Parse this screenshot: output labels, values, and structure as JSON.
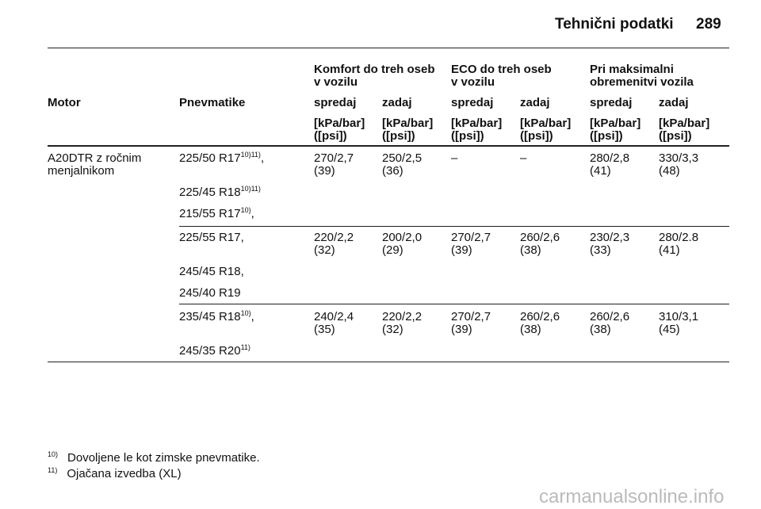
{
  "header": {
    "title": "Tehnični podatki",
    "page": "289"
  },
  "table": {
    "group_headers": [
      [
        "Komfort do treh oseb",
        "v vozilu"
      ],
      [
        "ECO do treh oseb",
        "v vozilu"
      ],
      [
        "Pri maksimalni",
        "obremenitvi vozila"
      ]
    ],
    "columns": [
      "Motor",
      "Pnevmatike",
      "spredaj",
      "zadaj",
      "spredaj",
      "zadaj",
      "spredaj",
      "zadaj"
    ],
    "units": [
      [
        "[kPa/bar]",
        "([psi])"
      ],
      [
        "[kPa/bar]",
        "([psi])"
      ],
      [
        "[kPa/bar]",
        "([psi])"
      ],
      [
        "[kPa/bar]",
        "([psi])"
      ],
      [
        "[kPa/bar]",
        "([psi])"
      ],
      [
        "[kPa/bar]",
        "([psi])"
      ]
    ],
    "motor": [
      "A20DTR z ročnim",
      "menjalnikom"
    ],
    "groups": [
      {
        "tires": [
          {
            "size": "225/50 R17",
            "notes": "10)11)",
            "suffix": ","
          },
          {
            "size": "225/45 R18",
            "notes": "10)11)"
          },
          {
            "size": "215/55 R17",
            "notes": "10)",
            "suffix": ","
          }
        ],
        "values": [
          [
            "270/2,7",
            "(39)"
          ],
          [
            "250/2,5",
            "(36)"
          ],
          [
            "–"
          ],
          [
            "–"
          ],
          [
            "280/2,8",
            "(41)"
          ],
          [
            "330/3,3",
            "(48)"
          ]
        ]
      },
      {
        "tires": [
          {
            "size": "225/55 R17,"
          },
          {
            "size": "245/45 R18,"
          },
          {
            "size": "245/40 R19"
          }
        ],
        "values": [
          [
            "220/2,2",
            "(32)"
          ],
          [
            "200/2,0",
            "(29)"
          ],
          [
            "270/2,7",
            "(39)"
          ],
          [
            "260/2,6",
            "(38)"
          ],
          [
            "230/2,3",
            "(33)"
          ],
          [
            "280/2.8",
            "(41)"
          ]
        ]
      },
      {
        "tires": [
          {
            "size": "235/45 R18",
            "notes": "10)",
            "suffix": ","
          },
          {
            "size": "245/35 R20",
            "notes": "11)"
          }
        ],
        "values": [
          [
            "240/2,4",
            "(35)"
          ],
          [
            "220/2,2",
            "(32)"
          ],
          [
            "270/2,7",
            "(39)"
          ],
          [
            "260/2,6",
            "(38)"
          ],
          [
            "260/2,6",
            "(38)"
          ],
          [
            "310/3,1",
            "(45)"
          ]
        ]
      }
    ]
  },
  "footnotes": [
    {
      "mark": "10)",
      "text": "Dovoljene le kot zimske pnevmatike."
    },
    {
      "mark": "11)",
      "text": "Ojačana izvedba (XL)"
    }
  ],
  "watermark": "carmanualsonline.info"
}
